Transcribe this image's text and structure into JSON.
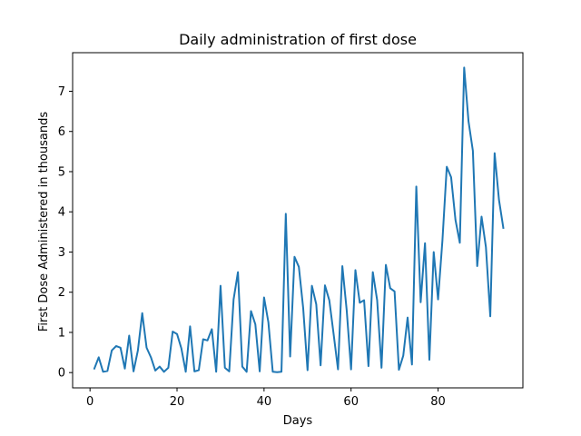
{
  "chart_data": {
    "type": "line",
    "title": "Daily administration of first dose",
    "xlabel": "Days",
    "ylabel": "First Dose Administered in thousands",
    "xlim": [
      -4,
      99.5
    ],
    "ylim": [
      -0.38,
      7.96
    ],
    "xticks": [
      0,
      20,
      40,
      60,
      80
    ],
    "yticks": [
      0,
      1,
      2,
      3,
      4,
      5,
      6,
      7
    ],
    "grid": false,
    "legend": "none",
    "line_color": "#1f77b4",
    "x": [
      1,
      2,
      3,
      4,
      5,
      6,
      7,
      8,
      9,
      10,
      11,
      12,
      13,
      14,
      15,
      16,
      17,
      18,
      19,
      20,
      21,
      22,
      23,
      24,
      25,
      26,
      27,
      28,
      29,
      30,
      31,
      32,
      33,
      34,
      35,
      36,
      37,
      38,
      39,
      40,
      41,
      42,
      43,
      44,
      45,
      46,
      47,
      48,
      49,
      50,
      51,
      52,
      53,
      54,
      55,
      56,
      57,
      58,
      59,
      60,
      61,
      62,
      63,
      64,
      65,
      66,
      67,
      68,
      69,
      70,
      71,
      72,
      73,
      74,
      75,
      76,
      77,
      78,
      79,
      80,
      81,
      82,
      83,
      84,
      85,
      86,
      87,
      88,
      89,
      90,
      91,
      92,
      93,
      94,
      95
    ],
    "y": [
      0.1,
      0.38,
      0.02,
      0.04,
      0.55,
      0.66,
      0.62,
      0.1,
      0.92,
      0.03,
      0.55,
      1.48,
      0.62,
      0.38,
      0.05,
      0.15,
      0.02,
      0.12,
      1.02,
      0.96,
      0.6,
      0.02,
      1.15,
      0.03,
      0.06,
      0.83,
      0.8,
      1.08,
      0.02,
      2.16,
      0.12,
      0.03,
      1.82,
      2.5,
      0.15,
      0.02,
      1.53,
      1.2,
      0.03,
      1.87,
      1.25,
      0.02,
      0.01,
      0.02,
      3.95,
      0.4,
      2.88,
      2.63,
      1.6,
      0.06,
      2.16,
      1.7,
      0.18,
      2.17,
      1.8,
      0.95,
      0.08,
      2.65,
      1.55,
      0.08,
      2.55,
      1.74,
      1.8,
      0.16,
      2.5,
      1.8,
      0.12,
      2.68,
      2.1,
      2.02,
      0.07,
      0.42,
      1.37,
      0.2,
      4.63,
      1.75,
      3.22,
      0.32,
      3.0,
      1.82,
      3.28,
      5.12,
      4.86,
      3.8,
      3.23,
      7.59,
      6.25,
      5.52,
      2.65,
      3.88,
      3.12,
      1.4,
      5.46,
      4.3,
      3.6
    ]
  }
}
